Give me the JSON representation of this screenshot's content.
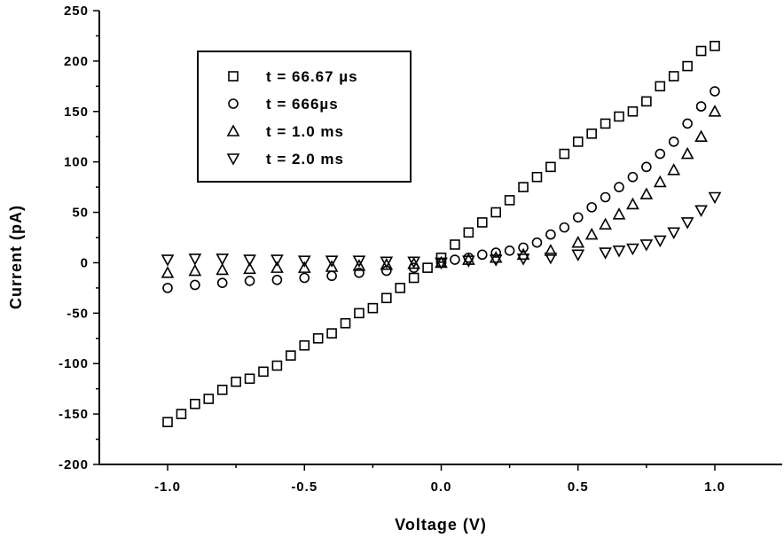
{
  "chart_data": {
    "type": "scatter",
    "title": "",
    "xlabel": "Voltage (V)",
    "ylabel": "Current (pA)",
    "xlim": [
      -1.25,
      1.25
    ],
    "ylim": [
      -200,
      250
    ],
    "xticks": [
      -1.0,
      -0.5,
      0.0,
      0.5,
      1.0
    ],
    "xtick_labels": [
      "-1.0",
      "-0.5",
      "0.0",
      "0.5",
      "1.0"
    ],
    "yticks": [
      -200,
      -150,
      -100,
      -50,
      0,
      50,
      100,
      150,
      200,
      250
    ],
    "ytick_labels": [
      "-200",
      "-150",
      "-100",
      "-50",
      "0",
      "50",
      "100",
      "150",
      "200",
      "250"
    ],
    "grid": false,
    "legend_position": "top-left",
    "series": [
      {
        "name": "t = 66.67 µs",
        "marker": "square",
        "x": [
          -1.0,
          -0.95,
          -0.9,
          -0.85,
          -0.8,
          -0.75,
          -0.7,
          -0.65,
          -0.6,
          -0.55,
          -0.5,
          -0.45,
          -0.4,
          -0.35,
          -0.3,
          -0.25,
          -0.2,
          -0.15,
          -0.1,
          -0.05,
          0.0,
          0.05,
          0.1,
          0.15,
          0.2,
          0.25,
          0.3,
          0.35,
          0.4,
          0.45,
          0.5,
          0.55,
          0.6,
          0.65,
          0.7,
          0.75,
          0.8,
          0.85,
          0.9,
          0.95,
          1.0
        ],
        "y": [
          -158,
          -150,
          -140,
          -135,
          -126,
          -118,
          -115,
          -108,
          -102,
          -92,
          -82,
          -75,
          -70,
          -60,
          -50,
          -45,
          -35,
          -25,
          -15,
          -5,
          5,
          18,
          30,
          40,
          50,
          62,
          75,
          85,
          95,
          108,
          120,
          128,
          138,
          145,
          150,
          160,
          175,
          185,
          195,
          210,
          215
        ]
      },
      {
        "name": "t = 666µs",
        "marker": "circle",
        "x": [
          -1.0,
          -0.9,
          -0.8,
          -0.7,
          -0.6,
          -0.5,
          -0.4,
          -0.3,
          -0.2,
          -0.1,
          0.0,
          0.05,
          0.1,
          0.15,
          0.2,
          0.25,
          0.3,
          0.35,
          0.4,
          0.45,
          0.5,
          0.55,
          0.6,
          0.65,
          0.7,
          0.75,
          0.8,
          0.85,
          0.9,
          0.95,
          1.0
        ],
        "y": [
          -25,
          -22,
          -20,
          -18,
          -17,
          -15,
          -13,
          -10,
          -8,
          -5,
          0,
          3,
          5,
          8,
          10,
          12,
          15,
          20,
          28,
          35,
          45,
          55,
          65,
          75,
          85,
          95,
          108,
          120,
          138,
          155,
          170
        ]
      },
      {
        "name": "t = 1.0 ms",
        "marker": "triangle-up",
        "x": [
          -1.0,
          -0.9,
          -0.8,
          -0.7,
          -0.6,
          -0.5,
          -0.4,
          -0.3,
          -0.2,
          -0.1,
          0.0,
          0.1,
          0.2,
          0.3,
          0.4,
          0.5,
          0.55,
          0.6,
          0.65,
          0.7,
          0.75,
          0.8,
          0.85,
          0.9,
          0.95,
          1.0
        ],
        "y": [
          -10,
          -8,
          -7,
          -6,
          -5,
          -5,
          -4,
          -3,
          -2,
          -1,
          0,
          3,
          5,
          8,
          12,
          20,
          28,
          38,
          48,
          58,
          68,
          80,
          92,
          108,
          125,
          150
        ]
      },
      {
        "name": "t = 2.0 ms",
        "marker": "triangle-down",
        "x": [
          -1.0,
          -0.9,
          -0.8,
          -0.7,
          -0.6,
          -0.5,
          -0.4,
          -0.3,
          -0.2,
          -0.1,
          0.0,
          0.1,
          0.2,
          0.3,
          0.4,
          0.5,
          0.6,
          0.65,
          0.7,
          0.75,
          0.8,
          0.85,
          0.9,
          0.95,
          1.0
        ],
        "y": [
          3,
          4,
          4,
          3,
          3,
          2,
          2,
          2,
          1,
          1,
          0,
          2,
          3,
          4,
          5,
          8,
          10,
          12,
          14,
          18,
          22,
          30,
          40,
          52,
          65
        ]
      }
    ]
  }
}
